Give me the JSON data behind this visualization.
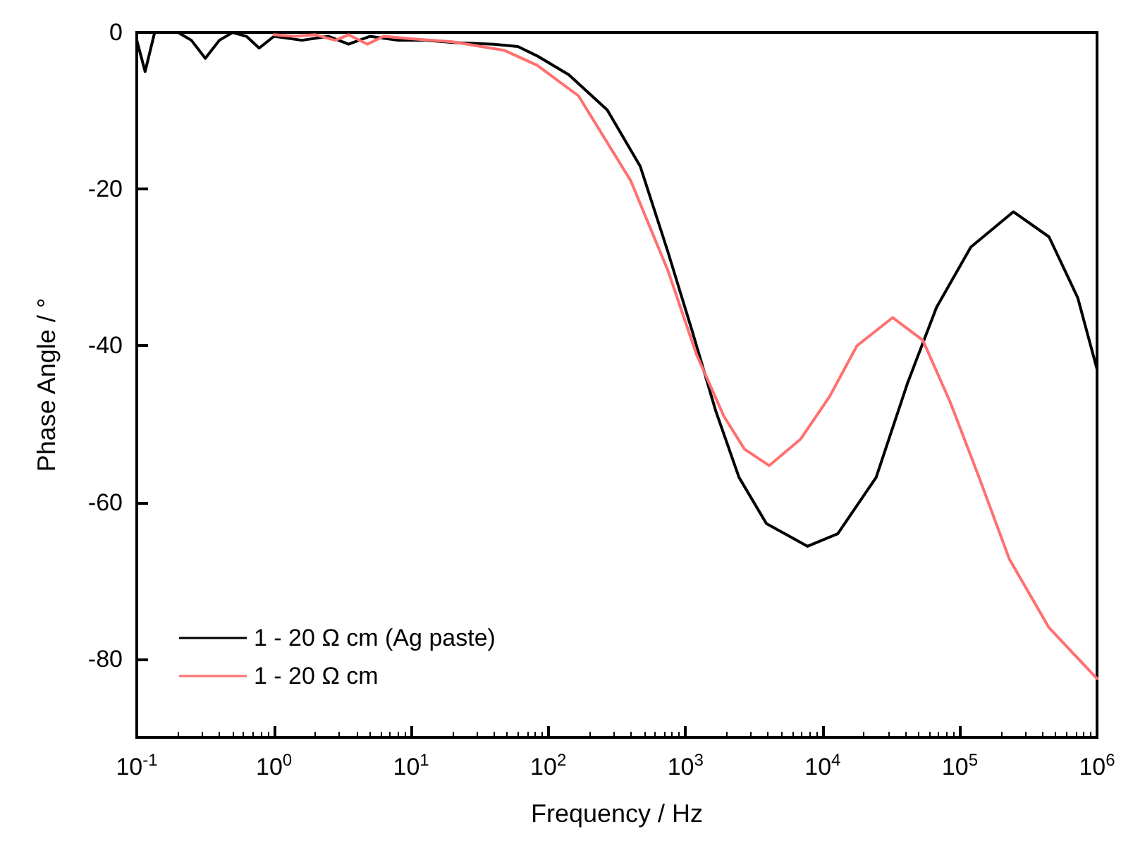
{
  "chart_data": {
    "type": "line",
    "xlabel": "Frequency / Hz",
    "ylabel": "Phase Angle / °",
    "log": "x",
    "xlim": [
      0.1,
      1000000
    ],
    "ylim": [
      -90,
      0
    ],
    "xticks": [
      {
        "value": 0.1,
        "label": "10$^{-1}$"
      },
      {
        "value": 1,
        "label": "10$^{0}$"
      },
      {
        "value": 10,
        "label": "10$^{1}$"
      },
      {
        "value": 100,
        "label": "10$^{2}$"
      },
      {
        "value": 1000,
        "label": "10$^{3}$"
      },
      {
        "value": 10000,
        "label": "10$^{4}$"
      },
      {
        "value": 100000,
        "label": "10$^{5}$"
      },
      {
        "value": 1000000,
        "label": "10$^{6}$"
      }
    ],
    "yticks": [
      0,
      -20,
      -40,
      -60,
      -80
    ],
    "grid": false,
    "legend": "bottom left",
    "marker": "none",
    "line_style": "solid",
    "series": [
      {
        "name": "1 - 20 Ω cm (Ag paste)",
        "color": "#000000",
        "x": [
          0.1,
          0.115,
          0.135,
          0.2,
          0.25,
          0.316,
          0.4,
          0.5,
          0.63,
          0.78,
          1,
          1.6,
          2.5,
          3.5,
          5,
          8,
          12.6,
          21,
          40,
          60,
          83,
          141,
          269,
          468,
          741,
          1122,
          1660,
          2455,
          3890,
          7762,
          12882,
          24547,
          41687,
          67608,
          120226,
          245471,
          446684,
          724436,
          1000000
        ],
        "values": [
          -1,
          -5,
          0,
          0,
          -1,
          -3.3,
          -1,
          0,
          -0.5,
          -2,
          -0.5,
          -1,
          -0.5,
          -1.5,
          -0.5,
          -1,
          -1,
          -1.3,
          -1.5,
          -1.8,
          -3,
          -5.4,
          -9.9,
          -17.1,
          -27.9,
          -38.2,
          -48.3,
          -56.8,
          -62.7,
          -65.6,
          -64,
          -56.8,
          -44.7,
          -35.1,
          -27.4,
          -22.9,
          -26.1,
          -33.9,
          -43
        ]
      },
      {
        "name": "1 - 20 Ω cm",
        "color": "#ff7070",
        "x": [
          1,
          1.4,
          2,
          2.8,
          3.5,
          4.8,
          6.3,
          10,
          20,
          48,
          83,
          166,
          398,
          741,
          1202,
          1905,
          2692,
          4074,
          6918,
          11220,
          17783,
          32359,
          53703,
          85114,
          138038,
          229087,
          446684,
          1000000
        ],
        "values": [
          -0.3,
          -0.5,
          -0.3,
          -1,
          -0.3,
          -1.5,
          -0.5,
          -0.8,
          -1.2,
          -2.3,
          -4.2,
          -8.1,
          -18.9,
          -30.3,
          -41.1,
          -49,
          -53.2,
          -55.3,
          -51.9,
          -46.5,
          -40,
          -36.4,
          -39.3,
          -47.2,
          -56.8,
          -67.2,
          -76,
          -82.5
        ]
      }
    ]
  }
}
